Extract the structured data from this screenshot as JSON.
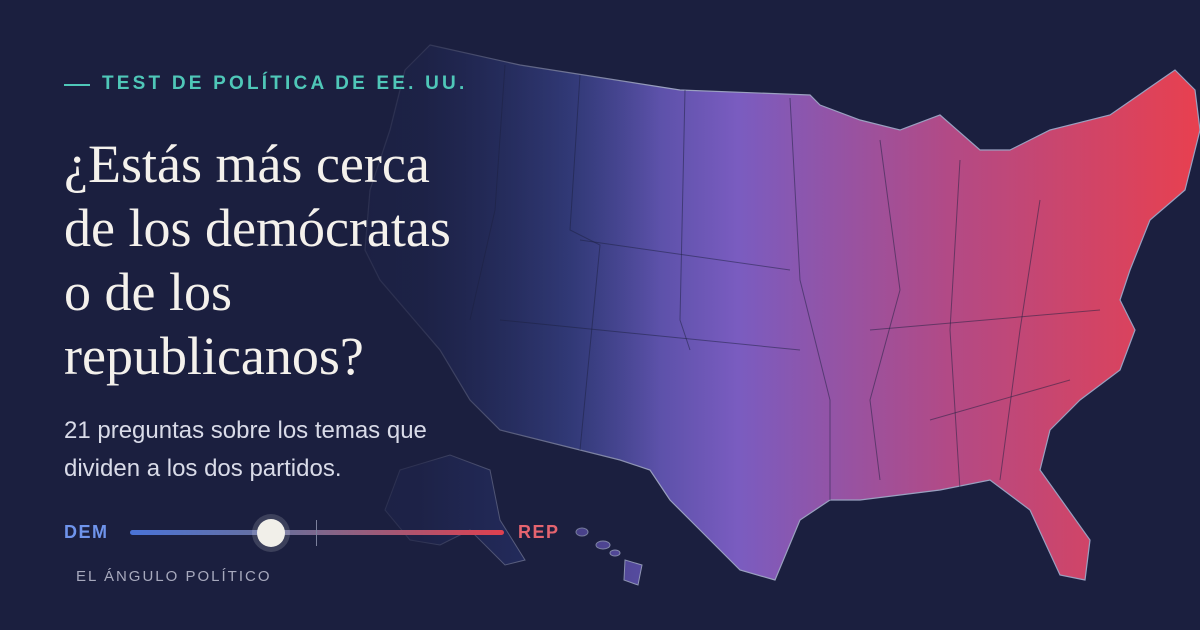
{
  "eyebrow": "TEST DE POLÍTICA DE EE. UU.",
  "title_lines": [
    "¿Estás más cerca",
    "de los demócratas",
    "o de los",
    "republicanos?"
  ],
  "subtitle_lines": [
    "21 preguntas sobre los temas que",
    "dividen a los dos partidos."
  ],
  "slider": {
    "left_label": "DEM",
    "right_label": "REP"
  },
  "brand": "EL ÁNGULO POLÍTICO"
}
